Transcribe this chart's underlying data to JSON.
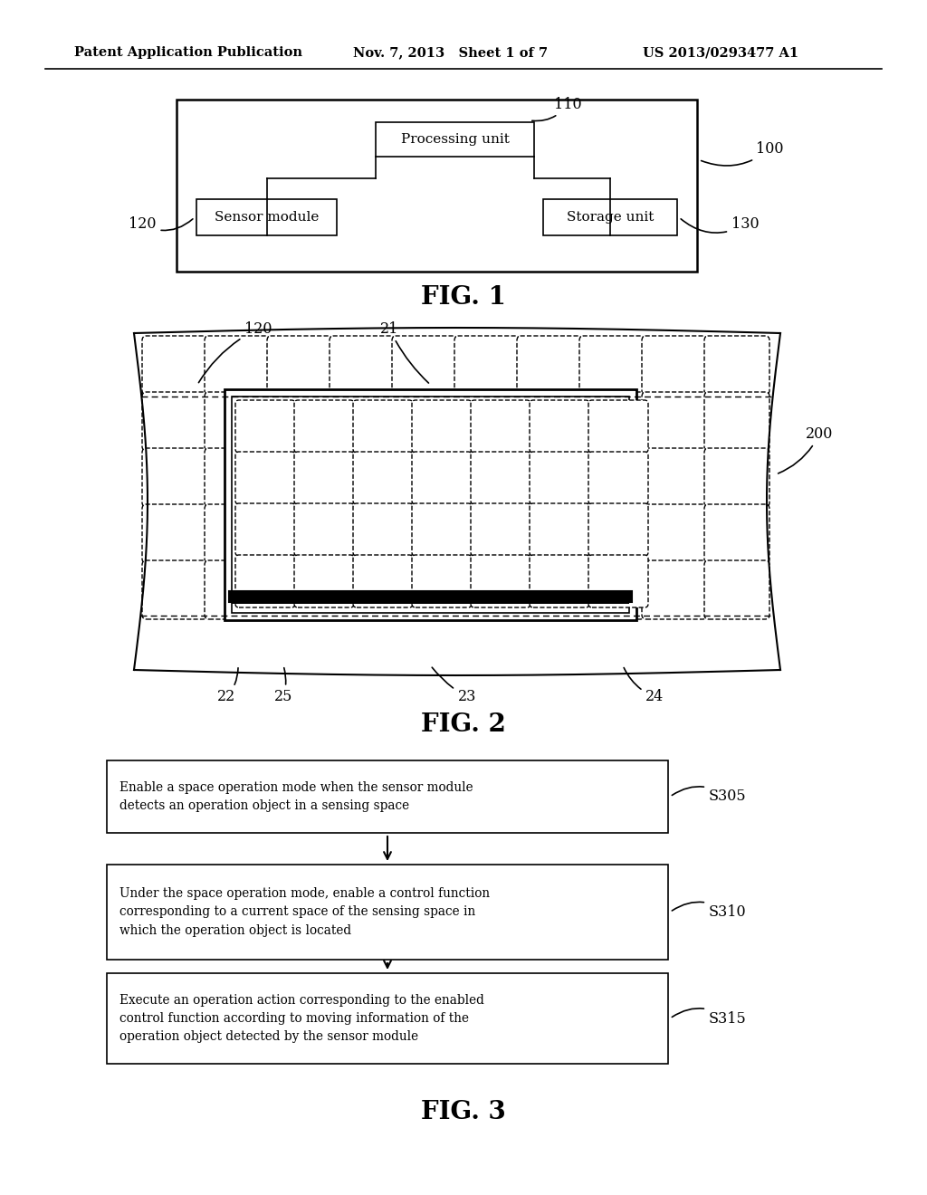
{
  "background_color": "#ffffff",
  "header_left": "Patent Application Publication",
  "header_mid": "Nov. 7, 2013   Sheet 1 of 7",
  "header_right": "US 2013/0293477 A1",
  "fig1_title": "FIG. 1",
  "fig2_title": "FIG. 2",
  "fig3_title": "FIG. 3",
  "fig3_steps": [
    {
      "label": "Enable a space operation mode when the sensor module\ndetects an operation object in a sensing space",
      "ref": "S305"
    },
    {
      "label": "Under the space operation mode, enable a control function\ncorresponding to a current space of the sensing space in\nwhich the operation object is located",
      "ref": "S310"
    },
    {
      "label": "Execute an operation action corresponding to the enabled\ncontrol function according to moving information of the\noperation object detected by the sensor module",
      "ref": "S315"
    }
  ]
}
